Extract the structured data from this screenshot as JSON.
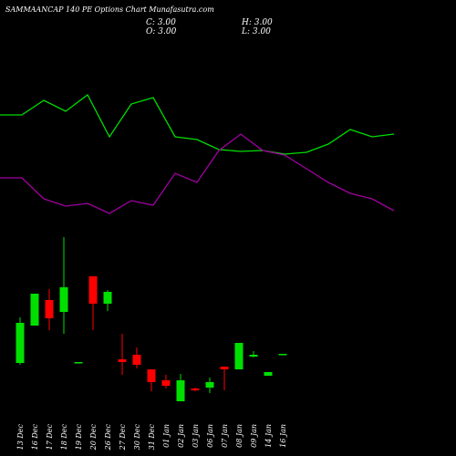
{
  "chart_data": {
    "type": "candlestick",
    "title": "SAMMAANCAP 140 PE Options Chart Munafasutra.com",
    "ohlc_labels": [
      "C: 3.00",
      "H: 3.00",
      "O: 3.00",
      "L: 3.00"
    ],
    "categories": [
      "13 Dec",
      "16 Dec",
      "17 Dec",
      "18 Dec",
      "19 Dec",
      "20 Dec",
      "26 Dec",
      "27 Dec",
      "30 Dec",
      "31 Dec",
      "01 Jan",
      "02 Jan",
      "03 Jan",
      "06 Jan",
      "07 Jan",
      "08 Jan",
      "09 Jan",
      "14 Jan",
      "16 Jan"
    ],
    "open": [
      2.5,
      4.55,
      5.95,
      5.3,
      2.5,
      7.25,
      5.75,
      2.7,
      2.95,
      2.15,
      1.55,
      0.4,
      1.1,
      1.15,
      2.3,
      2.15,
      2.85,
      1.8,
      3.0
    ],
    "high": [
      5.0,
      6.3,
      6.55,
      9.4,
      2.55,
      7.25,
      6.5,
      4.1,
      3.35,
      2.15,
      1.85,
      1.9,
      1.15,
      1.7,
      2.3,
      3.6,
      3.15,
      2.0,
      3.0
    ],
    "low": [
      2.4,
      4.55,
      4.3,
      4.1,
      2.5,
      4.3,
      5.35,
      1.85,
      2.2,
      0.95,
      1.1,
      0.4,
      0.95,
      0.85,
      1.0,
      2.15,
      2.8,
      1.8,
      3.0
    ],
    "close": [
      4.7,
      6.3,
      4.95,
      6.65,
      2.55,
      5.75,
      6.4,
      2.55,
      2.4,
      1.45,
      1.25,
      1.55,
      1.0,
      1.45,
      2.15,
      3.6,
      2.95,
      2.0,
      3.0
    ],
    "up_color": "#00e000",
    "down_color": "#ff0000",
    "ylim": [
      0,
      10
    ],
    "lines": [
      {
        "color": "#00dd00",
        "values": [
          174,
          174,
          190,
          178,
          196,
          150,
          186,
          193,
          150,
          147,
          136,
          134,
          135,
          131,
          133,
          142,
          158,
          150,
          153
        ]
      },
      {
        "color": "#a000a0",
        "values": [
          105,
          105,
          82,
          74,
          77,
          66,
          80,
          75,
          110,
          100,
          135,
          153,
          135,
          130,
          115,
          100,
          88,
          82,
          69
        ]
      }
    ],
    "y2lim": [
      0,
      300
    ]
  }
}
